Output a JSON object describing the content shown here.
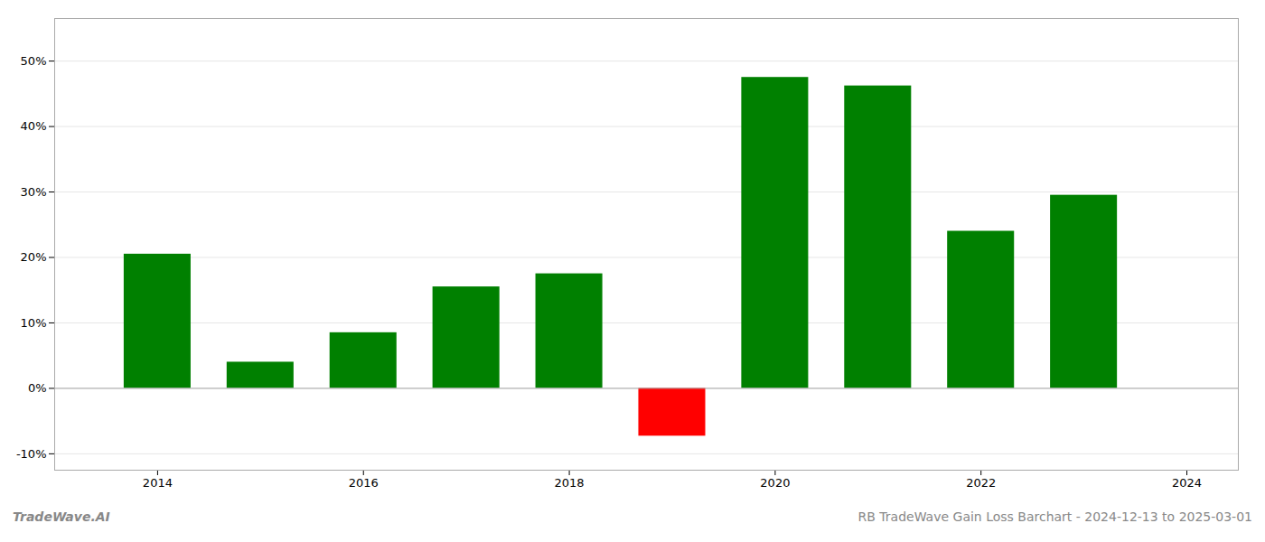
{
  "chart_data": {
    "type": "bar",
    "x": [
      2014,
      2015,
      2016,
      2017,
      2018,
      2019,
      2020,
      2021,
      2022,
      2023
    ],
    "values": [
      0.205,
      0.04,
      0.085,
      0.155,
      0.175,
      -0.073,
      0.475,
      0.462,
      0.24,
      0.295
    ],
    "colors": [
      "#008000",
      "#008000",
      "#008000",
      "#008000",
      "#008000",
      "#ff0000",
      "#008000",
      "#008000",
      "#008000",
      "#008000"
    ],
    "xlim": [
      2013.0,
      2024.5
    ],
    "xticks": [
      2014,
      2016,
      2018,
      2020,
      2022,
      2024
    ],
    "ylim": [
      -0.125,
      0.565
    ],
    "yticks": [
      {
        "value": -0.1,
        "label": "-10%"
      },
      {
        "value": 0.0,
        "label": "0%"
      },
      {
        "value": 0.1,
        "label": "10%"
      },
      {
        "value": 0.2,
        "label": "20%"
      },
      {
        "value": 0.3,
        "label": "30%"
      },
      {
        "value": 0.4,
        "label": "40%"
      },
      {
        "value": 0.5,
        "label": "50%"
      }
    ],
    "grid": true,
    "annotations": [
      "TradeWave.AI",
      "RB TradeWave Gain Loss Barchart - 2024-12-13 to 2025-03-01"
    ]
  }
}
